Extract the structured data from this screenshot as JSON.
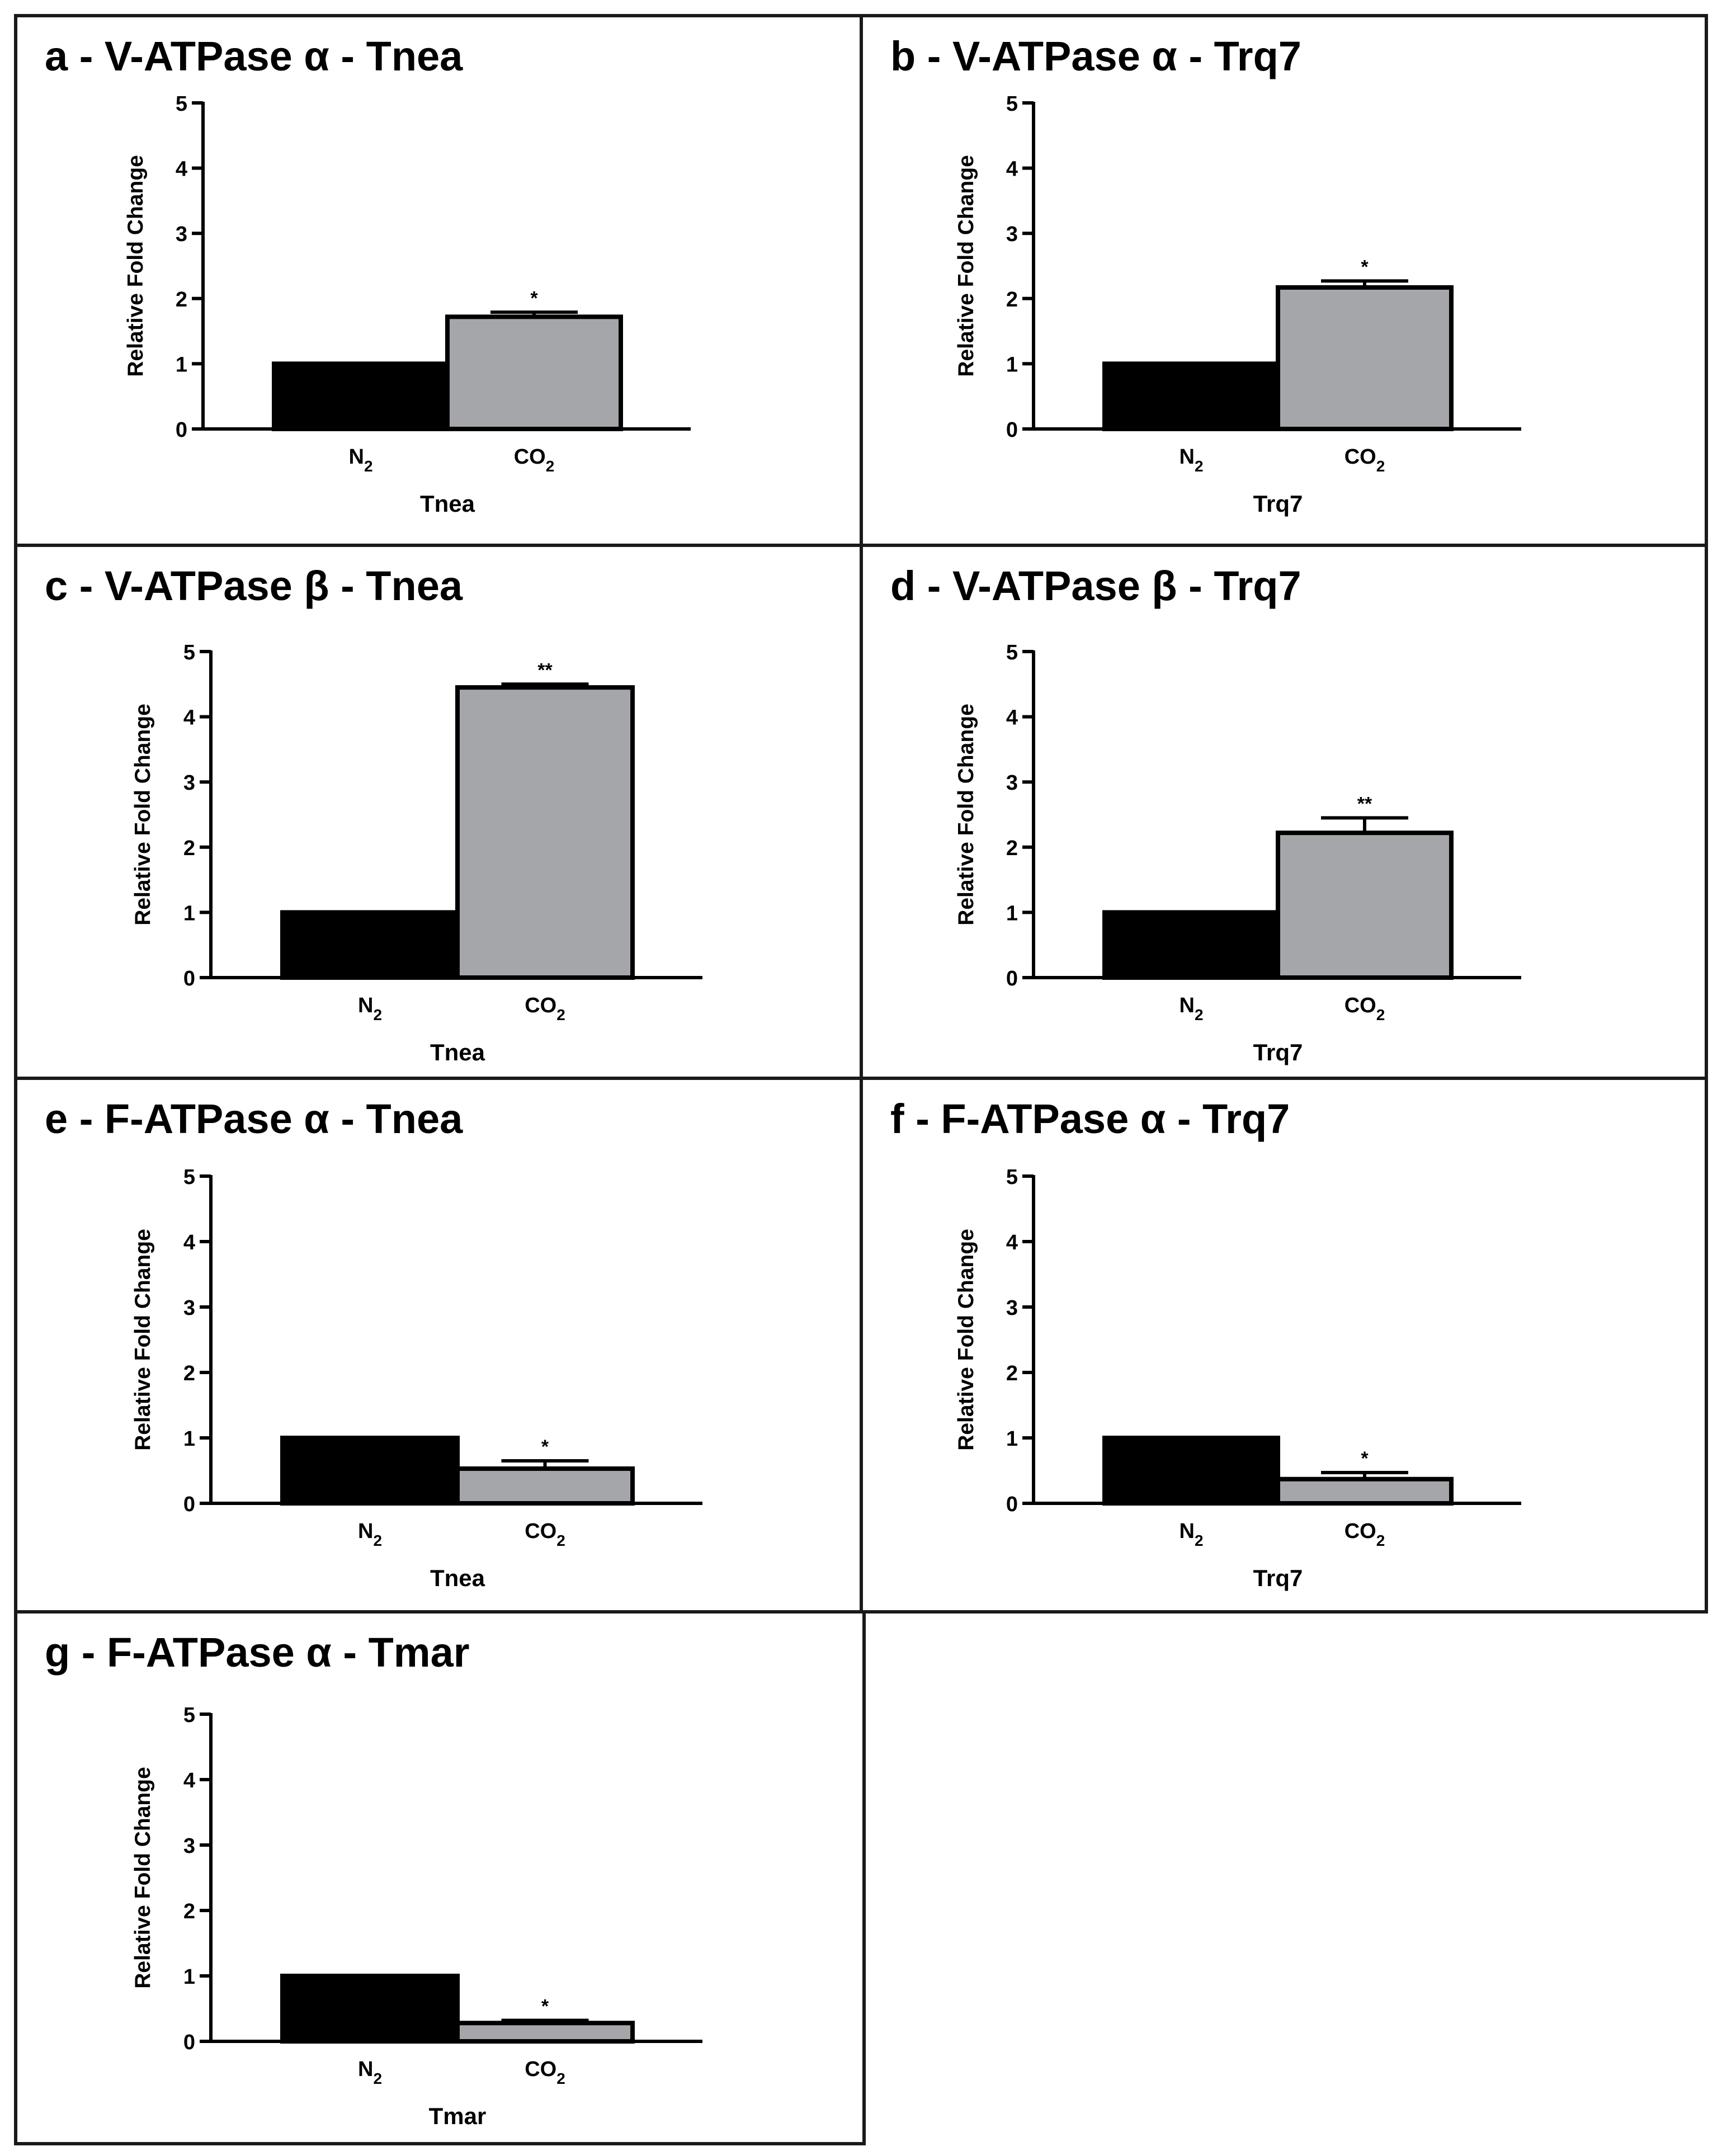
{
  "colors": {
    "n2_bar": "#000000",
    "co2_bar": "#a5a6a9",
    "frame": "#1a1a1a"
  },
  "chart_data": [
    {
      "type": "bar",
      "title": "a - V-ATPase α  - Tnea",
      "ylabel": "Relative Fold Change",
      "xlabel": "Tnea",
      "ylim": [
        0,
        5
      ],
      "yticks": [
        "0",
        "1",
        "2",
        "3",
        "4",
        "5"
      ],
      "categories": [
        {
          "main": "N",
          "sub": "2"
        },
        {
          "main": "CO",
          "sub": "2"
        }
      ],
      "values": [
        1.0,
        1.72
      ],
      "errors": [
        0,
        0.07
      ],
      "significance": [
        "",
        "*"
      ]
    },
    {
      "type": "bar",
      "title": "b - V-ATPase α  - Trq7",
      "ylabel": "Relative Fold Change",
      "xlabel": "Trq7",
      "ylim": [
        0,
        5
      ],
      "yticks": [
        "0",
        "1",
        "2",
        "3",
        "4",
        "5"
      ],
      "categories": [
        {
          "main": "N",
          "sub": "2"
        },
        {
          "main": "CO",
          "sub": "2"
        }
      ],
      "values": [
        1.0,
        2.17
      ],
      "errors": [
        0,
        0.1
      ],
      "significance": [
        "",
        "*"
      ]
    },
    {
      "type": "bar",
      "title": "c - V-ATPase β  - Tnea",
      "ylabel": "Relative Fold Change",
      "xlabel": "Tnea",
      "ylim": [
        0,
        5
      ],
      "yticks": [
        "0",
        "1",
        "2",
        "3",
        "4",
        "5"
      ],
      "categories": [
        {
          "main": "N",
          "sub": "2"
        },
        {
          "main": "CO",
          "sub": "2"
        }
      ],
      "values": [
        1.0,
        4.45
      ],
      "errors": [
        0,
        0.05
      ],
      "significance": [
        "",
        "**"
      ]
    },
    {
      "type": "bar",
      "title": "d - V-ATPase β  - Trq7",
      "ylabel": "Relative Fold Change",
      "xlabel": "Trq7",
      "ylim": [
        0,
        5
      ],
      "yticks": [
        "0",
        "1",
        "2",
        "3",
        "4",
        "5"
      ],
      "categories": [
        {
          "main": "N",
          "sub": "2"
        },
        {
          "main": "CO",
          "sub": "2"
        }
      ],
      "values": [
        1.0,
        2.22
      ],
      "errors": [
        0,
        0.23
      ],
      "significance": [
        "",
        "**"
      ]
    },
    {
      "type": "bar",
      "title": "e - F-ATPase α  - Tnea",
      "ylabel": "Relative Fold Change",
      "xlabel": "Tnea",
      "ylim": [
        0,
        5
      ],
      "yticks": [
        "0",
        "1",
        "2",
        "3",
        "4",
        "5"
      ],
      "categories": [
        {
          "main": "N",
          "sub": "2"
        },
        {
          "main": "CO",
          "sub": "2"
        }
      ],
      "values": [
        1.0,
        0.53
      ],
      "errors": [
        0,
        0.12
      ],
      "significance": [
        "",
        "*"
      ]
    },
    {
      "type": "bar",
      "title": "f - F-ATPase α  - Trq7",
      "ylabel": "Relative Fold Change",
      "xlabel": "Trq7",
      "ylim": [
        0,
        5
      ],
      "yticks": [
        "0",
        "1",
        "2",
        "3",
        "4",
        "5"
      ],
      "categories": [
        {
          "main": "N",
          "sub": "2"
        },
        {
          "main": "CO",
          "sub": "2"
        }
      ],
      "values": [
        1.0,
        0.37
      ],
      "errors": [
        0,
        0.1
      ],
      "significance": [
        "",
        "*"
      ]
    },
    {
      "type": "bar",
      "title": "g - F-ATPase α  - Tmar",
      "ylabel": "Relative Fold Change",
      "xlabel": "Tmar",
      "ylim": [
        0,
        5
      ],
      "yticks": [
        "0",
        "1",
        "2",
        "3",
        "4",
        "5"
      ],
      "categories": [
        {
          "main": "N",
          "sub": "2"
        },
        {
          "main": "CO",
          "sub": "2"
        }
      ],
      "values": [
        1.0,
        0.28
      ],
      "errors": [
        0,
        0.04
      ],
      "significance": [
        "",
        "*"
      ]
    }
  ]
}
